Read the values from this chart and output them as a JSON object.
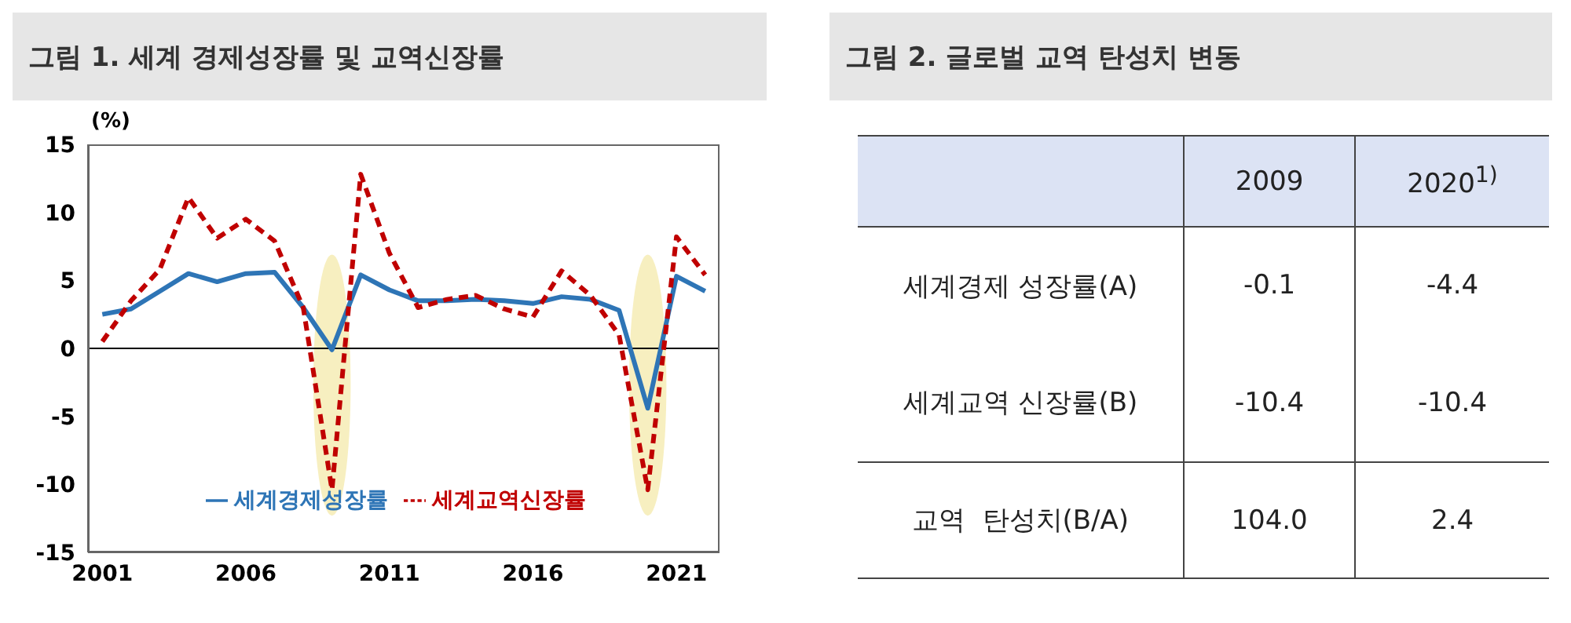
{
  "chart_data": [
    {
      "type": "line",
      "title": "그림 1.  세계 경제성장률 및 교역신장률",
      "ylabel": "(%)",
      "x": [
        2001,
        2002,
        2003,
        2004,
        2005,
        2006,
        2007,
        2008,
        2009,
        2010,
        2011,
        2012,
        2013,
        2014,
        2015,
        2016,
        2017,
        2018,
        2019,
        2020,
        2021,
        2022
      ],
      "series": [
        {
          "name": "세계경제성장률",
          "color": "#2e75b6",
          "line_style": "solid",
          "values": [
            2.5,
            2.9,
            4.2,
            5.5,
            4.9,
            5.5,
            5.6,
            3.0,
            -0.1,
            5.4,
            4.3,
            3.5,
            3.5,
            3.6,
            3.5,
            3.3,
            3.8,
            3.6,
            2.8,
            -4.4,
            5.3,
            4.2
          ]
        },
        {
          "name": "세계교역신장률",
          "color": "#c00000",
          "line_style": "dashed",
          "values": [
            0.5,
            3.5,
            5.8,
            11.1,
            8.1,
            9.5,
            7.9,
            3.0,
            -10.4,
            12.8,
            7.0,
            3.0,
            3.6,
            3.9,
            2.9,
            2.3,
            5.7,
            3.9,
            1.0,
            -10.4,
            8.2,
            5.4
          ]
        }
      ],
      "xlim": [
        2000.5,
        2022.5
      ],
      "xticks": [
        2001,
        2006,
        2011,
        2016,
        2021
      ],
      "ylim": [
        -15,
        15
      ],
      "yticks": [
        -15,
        -10,
        -5,
        0,
        5,
        10,
        15
      ],
      "ref_lines": [
        {
          "axis": "y",
          "value": 0,
          "color": "#000000"
        }
      ],
      "bands": [
        {
          "axis": "x",
          "from": 2008.35,
          "to": 2009.65,
          "color": "#f7efc0"
        },
        {
          "axis": "x",
          "from": 2019.35,
          "to": 2020.65,
          "color": "#f7efc0"
        }
      ],
      "grid": false,
      "legend": "bottom",
      "marker": "none"
    },
    {
      "type": "other",
      "title": "그림 2.  글로벌 교역 탄성치 변동",
      "annotations": [
        "2009",
        "2020$^{1)}$",
        "세계경제 성장률(A)",
        "-0.1",
        "-4.4",
        "세계교역 신장률(B)",
        "-10.4",
        "-10.4",
        "교역  탄성치(B/A)",
        "104.0",
        "2.4"
      ]
    }
  ]
}
